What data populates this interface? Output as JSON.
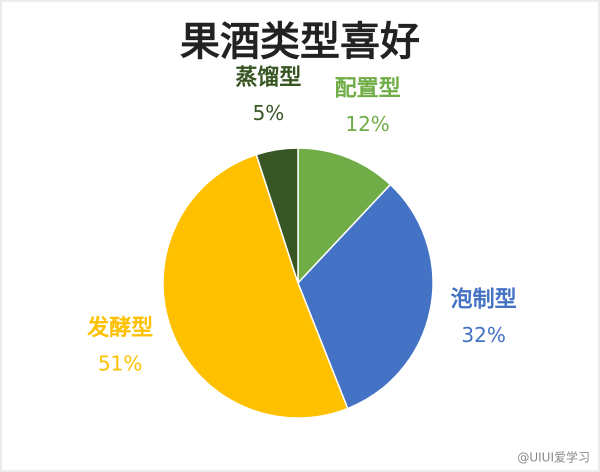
{
  "chart_data": {
    "type": "pie",
    "title": "果酒类型喜好",
    "categories": [
      "配置型",
      "泡制型",
      "发酵型",
      "蒸馏型"
    ],
    "values": [
      12,
      32,
      51,
      5
    ],
    "value_labels": [
      "12%",
      "32%",
      "51%",
      "5%"
    ],
    "colors": [
      "#70ad47",
      "#4472c4",
      "#ffc000",
      "#375623"
    ],
    "watermark": "@UIUI爱学习"
  }
}
